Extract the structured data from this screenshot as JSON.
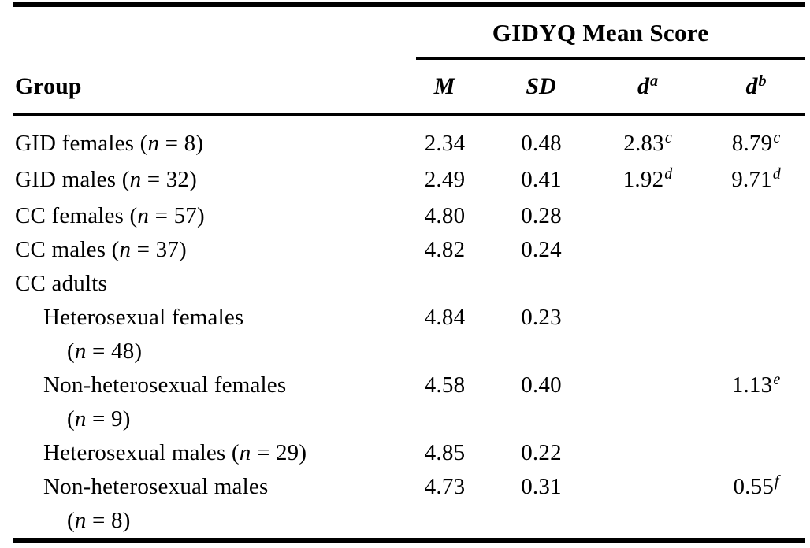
{
  "document": {
    "background": "#ffffff",
    "text_color": "#000000",
    "rule_color": "#000000"
  },
  "table": {
    "spanner_title": "GIDYQ Mean Score",
    "group_header": "Group",
    "n_symbol": "n",
    "value_headers": [
      {
        "label": "M",
        "sup": ""
      },
      {
        "label": "SD",
        "sup": ""
      },
      {
        "label": "d",
        "sup": "a"
      },
      {
        "label": "d",
        "sup": "b"
      }
    ],
    "rows": [
      {
        "label": "GID females",
        "n": "8",
        "n_newline": false,
        "indent": 0,
        "values": [
          {
            "v": "2.34",
            "sup": ""
          },
          {
            "v": "0.48",
            "sup": ""
          },
          {
            "v": "2.83",
            "sup": "c"
          },
          {
            "v": "8.79",
            "sup": "c"
          }
        ]
      },
      {
        "label": "GID males",
        "n": "32",
        "n_newline": false,
        "indent": 0,
        "values": [
          {
            "v": "2.49",
            "sup": ""
          },
          {
            "v": "0.41",
            "sup": ""
          },
          {
            "v": "1.92",
            "sup": "d"
          },
          {
            "v": "9.71",
            "sup": "d"
          }
        ]
      },
      {
        "label": "CC females",
        "n": "57",
        "n_newline": false,
        "indent": 0,
        "values": [
          {
            "v": "4.80",
            "sup": ""
          },
          {
            "v": "0.28",
            "sup": ""
          },
          {
            "v": "",
            "sup": ""
          },
          {
            "v": "",
            "sup": ""
          }
        ]
      },
      {
        "label": "CC males",
        "n": "37",
        "n_newline": false,
        "indent": 0,
        "values": [
          {
            "v": "4.82",
            "sup": ""
          },
          {
            "v": "0.24",
            "sup": ""
          },
          {
            "v": "",
            "sup": ""
          },
          {
            "v": "",
            "sup": ""
          }
        ]
      },
      {
        "label": "CC adults",
        "n": "",
        "n_newline": false,
        "indent": 0,
        "values": [
          {
            "v": "",
            "sup": ""
          },
          {
            "v": "",
            "sup": ""
          },
          {
            "v": "",
            "sup": ""
          },
          {
            "v": "",
            "sup": ""
          }
        ]
      },
      {
        "label": "Heterosexual females",
        "n": "48",
        "n_newline": true,
        "indent": 1,
        "values": [
          {
            "v": "4.84",
            "sup": ""
          },
          {
            "v": "0.23",
            "sup": ""
          },
          {
            "v": "",
            "sup": ""
          },
          {
            "v": "",
            "sup": ""
          }
        ]
      },
      {
        "label": "Non-heterosexual females",
        "n": "9",
        "n_newline": true,
        "indent": 1,
        "values": [
          {
            "v": "4.58",
            "sup": ""
          },
          {
            "v": "0.40",
            "sup": ""
          },
          {
            "v": "",
            "sup": ""
          },
          {
            "v": "1.13",
            "sup": "e"
          }
        ]
      },
      {
        "label": "Heterosexual males",
        "n": "29",
        "n_newline": false,
        "indent": 1,
        "values": [
          {
            "v": "4.85",
            "sup": ""
          },
          {
            "v": "0.22",
            "sup": ""
          },
          {
            "v": "",
            "sup": ""
          },
          {
            "v": "",
            "sup": ""
          }
        ]
      },
      {
        "label": "Non-heterosexual males",
        "n": "8",
        "n_newline": true,
        "indent": 1,
        "values": [
          {
            "v": "4.73",
            "sup": ""
          },
          {
            "v": "0.31",
            "sup": ""
          },
          {
            "v": "",
            "sup": ""
          },
          {
            "v": "0.55",
            "sup": "f"
          }
        ]
      }
    ]
  }
}
